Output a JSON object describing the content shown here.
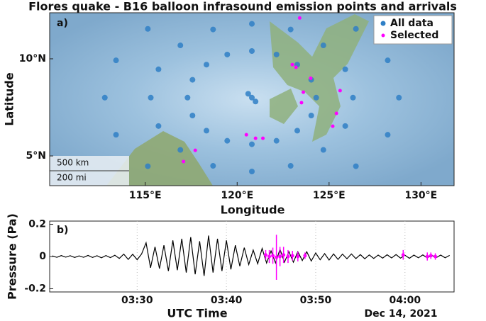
{
  "chart_data": [
    {
      "type": "scatter",
      "title": "Flores quake - B16 balloon infrasound emission points and arrivals",
      "panel": "a)",
      "xlabel": "Longitude",
      "ylabel": "Latitude",
      "xlim": [
        109.8,
        131.8
      ],
      "ylim": [
        3.47,
        12.37
      ],
      "xticks": [
        {
          "value": 115,
          "label": "115°E"
        },
        {
          "value": 120,
          "label": "120°E"
        },
        {
          "value": 125,
          "label": "125°E"
        },
        {
          "value": 130,
          "label": "130°E"
        }
      ],
      "yticks": [
        {
          "value": 5,
          "label": "5°N"
        },
        {
          "value": 10,
          "label": "10°N"
        }
      ],
      "scale_bar": [
        "500 km",
        "200 mi"
      ],
      "legend": "upper right",
      "series": [
        {
          "name": "All data",
          "color": "#2f7fc6",
          "x": [
            120.8,
            120.6,
            121.0,
            124.3,
            124.03,
            123.27,
            122.14,
            120.8,
            119.46,
            118.33,
            117.57,
            117.3,
            117.57,
            118.33,
            119.46,
            120.8,
            122.14,
            123.27,
            124.03,
            126.3,
            125.88,
            124.69,
            122.91,
            120.8,
            118.69,
            116.91,
            115.72,
            115.3,
            115.72,
            116.91,
            118.69,
            120.8,
            122.91,
            124.69,
            125.88,
            128.8,
            128.19,
            128.19,
            112.8,
            113.41,
            113.41,
            126.46,
            115.14,
            115.14,
            126.46
          ],
          "values": [
            8.0,
            8.2,
            7.8,
            8.0,
            8.92,
            9.7,
            10.22,
            10.4,
            10.22,
            9.7,
            8.92,
            8.0,
            7.08,
            6.3,
            5.78,
            5.6,
            5.78,
            6.3,
            7.08,
            8.0,
            9.46,
            10.69,
            11.51,
            11.8,
            11.51,
            10.69,
            9.46,
            8.0,
            6.54,
            5.31,
            4.49,
            4.2,
            4.49,
            5.31,
            6.54,
            8.0,
            9.92,
            6.09,
            8.0,
            9.92,
            6.09,
            11.54,
            11.54,
            4.47,
            4.47
          ]
        },
        {
          "name": "Selected",
          "color": "#ff00ff",
          "x": [
            123.0,
            123.2,
            123.6,
            123.5,
            125.6,
            125.4,
            125.2,
            121.0,
            121.4,
            120.5,
            117.72,
            117.08,
            123.4,
            124.0
          ],
          "values": [
            9.7,
            9.56,
            8.28,
            7.74,
            8.36,
            7.19,
            6.53,
            5.91,
            5.91,
            6.09,
            5.29,
            4.71,
            12.1,
            9.0
          ]
        }
      ]
    },
    {
      "type": "line",
      "panel": "b)",
      "xlabel": "UTC Time",
      "ylabel": "Pressure (Pa)",
      "date": "Dec 14, 2021",
      "xlim": [
        200.2,
        245.5
      ],
      "ylim": [
        -0.22,
        0.22
      ],
      "grid": true,
      "xticks": [
        {
          "value": 210,
          "label": "03:30"
        },
        {
          "value": 220,
          "label": "03:40"
        },
        {
          "value": 230,
          "label": "03:50"
        },
        {
          "value": 240,
          "label": "04:00"
        }
      ],
      "yticks": [
        0.2,
        0,
        -0.2
      ],
      "color": "#000000",
      "x": [
        200.5,
        201,
        201.5,
        202,
        202.5,
        203,
        203.5,
        204,
        204.5,
        205,
        205.5,
        206,
        206.5,
        207,
        207.5,
        208,
        208.5,
        209,
        209.5,
        210,
        210.5,
        211,
        211.5,
        212,
        212.5,
        213,
        213.5,
        214,
        214.5,
        215,
        215.5,
        216,
        216.5,
        217,
        217.5,
        218,
        218.5,
        219,
        219.5,
        220,
        220.5,
        221,
        221.5,
        222,
        222.5,
        223,
        223.5,
        224,
        224.5,
        225,
        225.5,
        226,
        226.5,
        227,
        227.5,
        228,
        228.5,
        229,
        229.5,
        230,
        230.5,
        231,
        231.5,
        232,
        232.5,
        233,
        233.5,
        234,
        234.5,
        235,
        235.5,
        236,
        236.5,
        237,
        237.5,
        238,
        238.5,
        239,
        239.5,
        240,
        240.5,
        241,
        241.5,
        242,
        242.5,
        243,
        243.5,
        244,
        244.5,
        245
      ],
      "values": [
        0.004,
        -0.005,
        0.006,
        -0.004,
        0.005,
        -0.006,
        0.004,
        -0.005,
        0.007,
        -0.006,
        0.005,
        -0.008,
        0.006,
        -0.007,
        0.008,
        -0.012,
        0.015,
        -0.018,
        0.014,
        -0.02,
        0.016,
        0.085,
        -0.07,
        0.06,
        -0.075,
        0.07,
        -0.09,
        0.1,
        -0.085,
        0.11,
        -0.1,
        0.12,
        -0.11,
        0.095,
        -0.12,
        0.13,
        -0.1,
        0.11,
        -0.09,
        0.1,
        -0.08,
        0.07,
        -0.06,
        0.055,
        -0.05,
        0.04,
        -0.045,
        0.05,
        -0.04,
        0.035,
        -0.04,
        0.045,
        -0.035,
        0.03,
        -0.035,
        0.03,
        -0.025,
        0.03,
        -0.028,
        0.022,
        -0.02,
        0.018,
        -0.022,
        0.016,
        -0.018,
        0.015,
        -0.014,
        0.016,
        -0.013,
        0.012,
        -0.014,
        0.01,
        -0.012,
        0.009,
        -0.01,
        0.011,
        -0.009,
        0.012,
        -0.01,
        0.008,
        -0.011,
        0.009,
        -0.008,
        0.01,
        -0.009,
        0.008,
        -0.007,
        0.009,
        -0.008,
        0.007
      ],
      "arrivals": {
        "color": "#ff00ff",
        "x": [
          224.4,
          224.8,
          225.2,
          225.6,
          226.0,
          226.4,
          226.9,
          227.4,
          228.0,
          228.8,
          239.8,
          242.5,
          242.9,
          243.4
        ],
        "values": [
          0.01,
          0,
          0.005,
          -0.005,
          0,
          0.01,
          0,
          0.005,
          0,
          0.005,
          0.01,
          0,
          0.005,
          0
        ],
        "errors": [
          0.03,
          0.04,
          0.05,
          0.14,
          0.06,
          0.05,
          0.04,
          0.03,
          0.03,
          0.02,
          0.03,
          0.025,
          0.02,
          0.02
        ]
      }
    }
  ]
}
